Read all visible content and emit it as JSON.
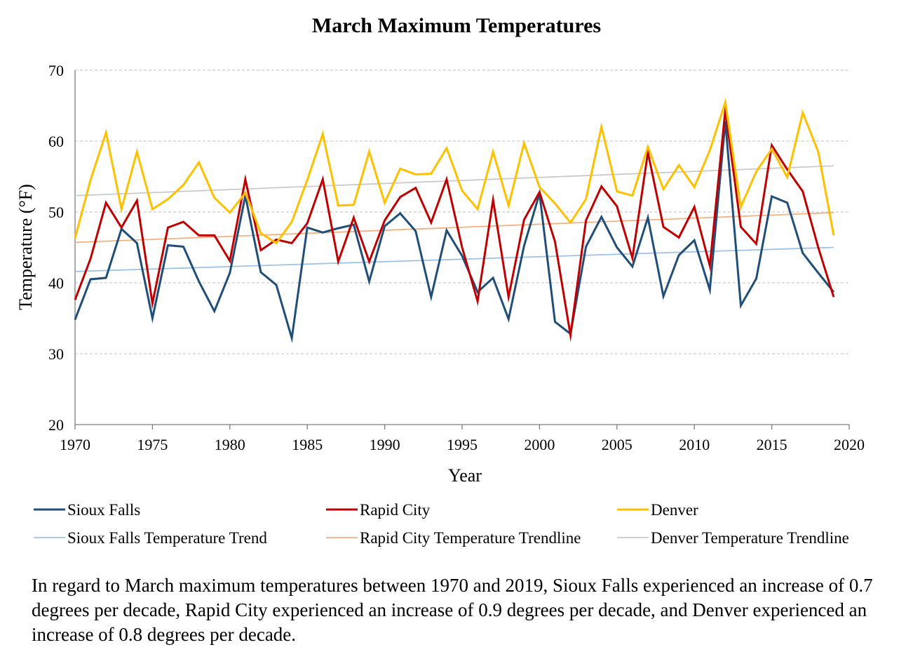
{
  "chart_data": {
    "type": "line",
    "title": "March Maximum Temperatures",
    "xlabel": "Year",
    "ylabel": "Temperature (°F)",
    "xlim": [
      1970,
      2020
    ],
    "ylim": [
      20,
      70
    ],
    "x_ticks": [
      1970,
      1975,
      1980,
      1985,
      1990,
      1995,
      2000,
      2005,
      2010,
      2015,
      2020
    ],
    "y_ticks": [
      20,
      30,
      40,
      50,
      60,
      70
    ],
    "grid": "horizontal dashed",
    "legend_position": "bottom",
    "x": [
      1970,
      1971,
      1972,
      1973,
      1974,
      1975,
      1976,
      1977,
      1978,
      1979,
      1980,
      1981,
      1982,
      1983,
      1984,
      1985,
      1986,
      1987,
      1988,
      1989,
      1990,
      1991,
      1992,
      1993,
      1994,
      1995,
      1996,
      1997,
      1998,
      1999,
      2000,
      2001,
      2002,
      2003,
      2004,
      2005,
      2006,
      2007,
      2008,
      2009,
      2010,
      2011,
      2012,
      2013,
      2014,
      2015,
      2016,
      2017,
      2018,
      2019
    ],
    "series": [
      {
        "name": "Sioux Falls",
        "color": "#1f4e79",
        "values": [
          34.8,
          40.5,
          40.7,
          47.6,
          45.6,
          35,
          45.3,
          45.1,
          40.2,
          36,
          41.4,
          52.3,
          41.5,
          39.7,
          32.2,
          47.8,
          47.1,
          47.7,
          48.2,
          40.2,
          48,
          49.8,
          47.3,
          38,
          47.4,
          43.8,
          38.7,
          40.7,
          34.9,
          45.2,
          52.6,
          34.5,
          32.8,
          45.1,
          49.3,
          45,
          42.3,
          49.2,
          38.1,
          43.9,
          46,
          39,
          62.8,
          36.8,
          40.6,
          52.2,
          51.3,
          44.2,
          41.4,
          38.7
        ]
      },
      {
        "name": "Rapid City",
        "color": "#c00000",
        "values": [
          37.6,
          43.4,
          51.3,
          47.8,
          51.6,
          37.1,
          47.8,
          48.6,
          46.7,
          46.7,
          43.1,
          54.6,
          44.6,
          46.1,
          45.6,
          48.4,
          54.6,
          43,
          49.2,
          43,
          48.8,
          52.1,
          53.4,
          48.5,
          54.6,
          45,
          37.4,
          51.7,
          38,
          48.9,
          52.8,
          45.8,
          32.6,
          48.8,
          53.6,
          50.8,
          43.5,
          58.4,
          47.9,
          46.4,
          50.7,
          42.4,
          64.4,
          47.9,
          45.5,
          59.4,
          56,
          52.9,
          45,
          38
        ]
      },
      {
        "name": "Denver",
        "color": "#ffc000",
        "values": [
          46.3,
          54.5,
          61.2,
          50.4,
          58.5,
          50.4,
          51.8,
          53.8,
          57,
          52,
          49.9,
          52.7,
          47,
          45.6,
          48.6,
          54.5,
          61,
          50.9,
          51,
          58.5,
          51.3,
          56.1,
          55.3,
          55.4,
          59,
          53,
          50.4,
          58.5,
          50.9,
          59.7,
          53.5,
          51.2,
          48.5,
          51.8,
          62,
          52.9,
          52.3,
          59.2,
          53.2,
          56.6,
          53.5,
          58.7,
          65.5,
          50.7,
          55.7,
          58.9,
          54.9,
          64,
          58.5,
          46.7
        ]
      },
      {
        "name": "Sioux Falls Temperature Trend",
        "color": "#9dc3e6",
        "trend": true,
        "values_start_end": [
          41.6,
          45
        ]
      },
      {
        "name": "Rapid City Temperature Trendline",
        "color": "#f4b183",
        "trend": true,
        "values_start_end": [
          45.7,
          49.9
        ]
      },
      {
        "name": "Denver Temperature Trendline",
        "color": "#c9c9c9",
        "trend": true,
        "values_start_end": [
          52.3,
          56.5
        ]
      }
    ]
  },
  "caption": "In regard to March maximum temperatures between 1970 and 2019, Sioux Falls experienced an increase of 0.7 degrees per decade, Rapid City experienced an increase of 0.9 degrees per decade, and Denver experienced an increase of 0.8 degrees per decade."
}
